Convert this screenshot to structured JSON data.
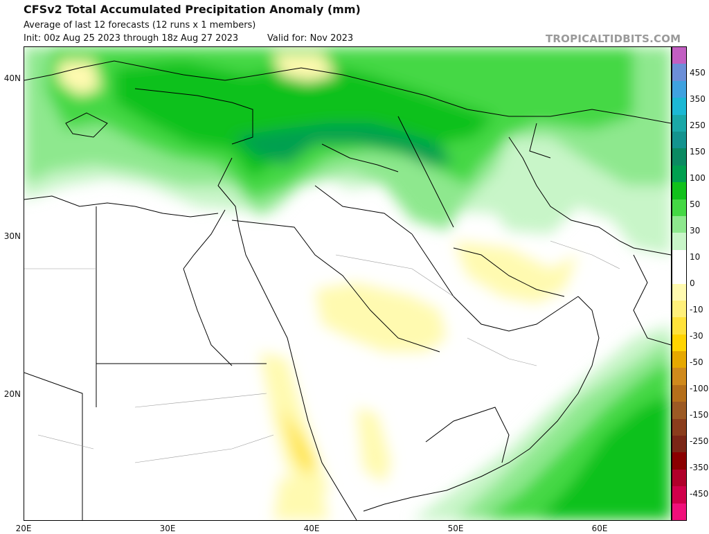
{
  "header": {
    "title": "CFSv2 Total Accumulated Precipitation Anomaly (mm)",
    "subtitle": "Average of last 12 forecasts (12 runs x 1 members)",
    "init": "Init: 00z Aug 25 2023 through 18z Aug 27 2023",
    "valid": "Valid for: Nov 2023",
    "watermark": "TROPICALTIDBITS.COM"
  },
  "map": {
    "lat_labels": [
      "40N",
      "30N",
      "20N"
    ],
    "lon_labels": [
      "20E",
      "30E",
      "40E",
      "50E",
      "60E"
    ]
  },
  "colorbar": {
    "labels": [
      "450",
      "350",
      "250",
      "150",
      "100",
      "50",
      "30",
      "10",
      "0",
      "-10",
      "-30",
      "-50",
      "-100",
      "-150",
      "-250",
      "-350",
      "-450"
    ],
    "colors": [
      "#c25fc2",
      "#6c8fd8",
      "#3fa2e0",
      "#1bb8d4",
      "#1aa8a8",
      "#13938f",
      "#0b8a62",
      "#00a050",
      "#11c11b",
      "#44d844",
      "#8ee88e",
      "#c8f5c8",
      "#ffffff",
      "#ffffff",
      "#fffab0",
      "#fff07a",
      "#ffe23a",
      "#ffd400",
      "#e6a800",
      "#d08a1c",
      "#b56f1a",
      "#9c5a24",
      "#8a3d1c",
      "#7a2616",
      "#8a0000",
      "#b0002a",
      "#d0004a",
      "#f0107a"
    ]
  }
}
